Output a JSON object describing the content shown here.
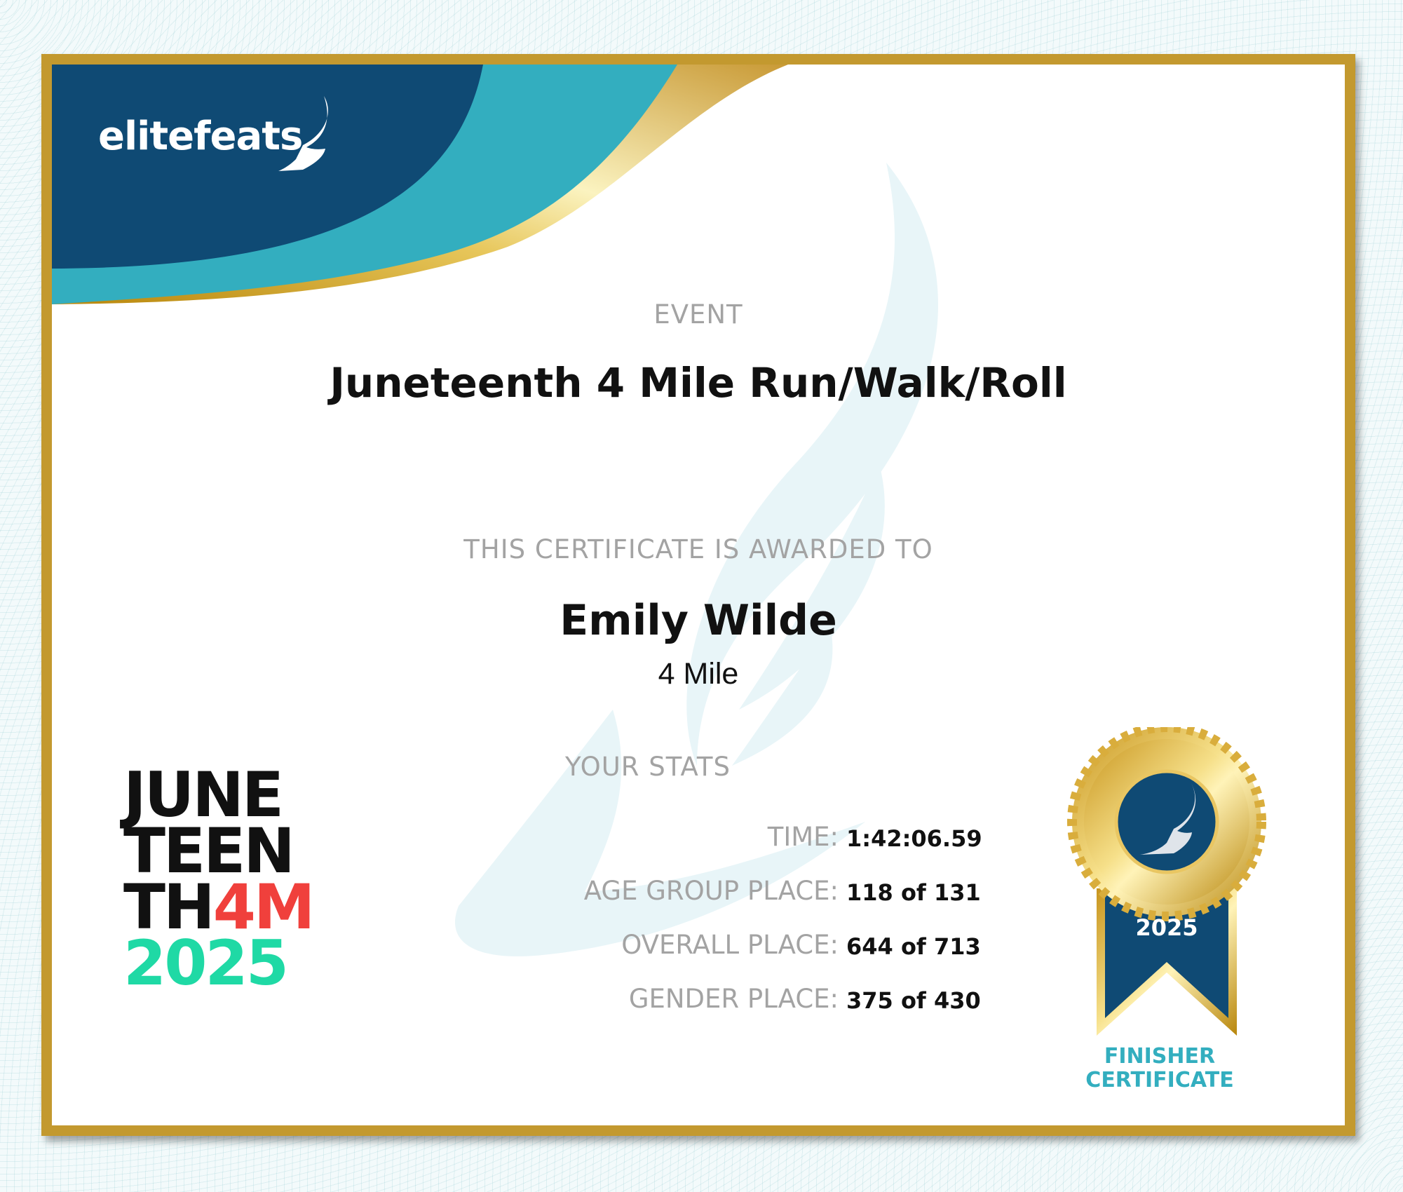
{
  "brand": {
    "logo_text": "elitefeats",
    "navy": "#0f4a74",
    "teal": "#33aebf",
    "gold": "#c3992f"
  },
  "event": {
    "label": "EVENT",
    "title": "Juneteenth 4 Mile Run/Walk/Roll"
  },
  "award": {
    "label": "THIS CERTIFICATE IS AWARDED TO",
    "name": "Emily Wilde",
    "distance": "4 Mile"
  },
  "stats": {
    "title": "YOUR STATS",
    "rows": [
      {
        "label": "TIME:",
        "value": "1:42:06.59"
      },
      {
        "label": "AGE GROUP PLACE:",
        "value": "118 of 131"
      },
      {
        "label": "OVERALL PLACE:",
        "value": "644 of 713"
      },
      {
        "label": "GENDER PLACE:",
        "value": "375 of 430"
      }
    ]
  },
  "race_logo": {
    "line1": "JUNE",
    "line2": "TEEN",
    "line3a": "TH",
    "line3b": "4M",
    "line4": "2025",
    "red": "#f0403c",
    "green": "#1fd9a5"
  },
  "medal": {
    "year": "2025",
    "caption_line1": "FINISHER",
    "caption_line2": "CERTIFICATE",
    "icon": "winged-foot-icon"
  }
}
